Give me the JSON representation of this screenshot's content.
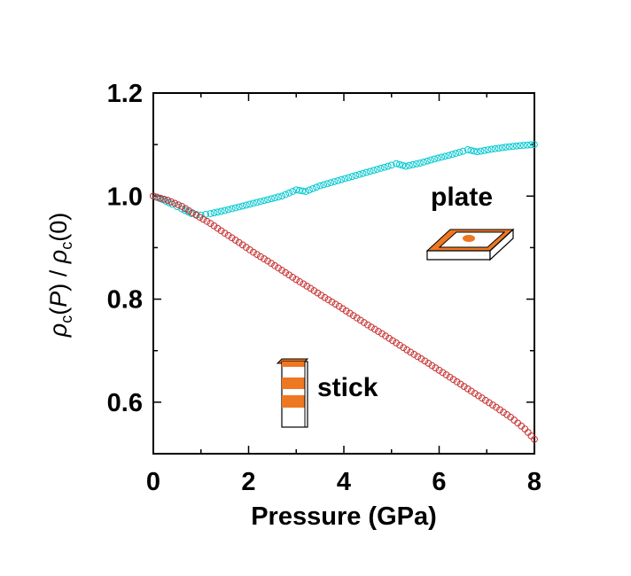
{
  "chart_data": {
    "type": "scatter",
    "xlabel": "Pressure (GPa)",
    "ylabel": {
      "rho1": "ρ",
      "sub1": "c",
      "mid": "(",
      "p": "P",
      "slash": ") / ",
      "rho2": "ρ",
      "sub2": "c",
      "end": "(0)"
    },
    "xlim": [
      0,
      8
    ],
    "ylim": [
      0.5,
      1.2
    ],
    "xticks": [
      "0",
      "2",
      "4",
      "6",
      "8"
    ],
    "yticks": [
      "0.6",
      "0.8",
      "1.0",
      "1.2"
    ],
    "grid": false,
    "legend": "none",
    "annotations": [
      "plate",
      "stick"
    ],
    "series": [
      {
        "color": "#00c8d0",
        "marker": "open-circle",
        "points": [
          [
            0,
            1.0
          ],
          [
            0.2,
            0.993
          ],
          [
            0.4,
            0.984
          ],
          [
            0.6,
            0.975
          ],
          [
            0.8,
            0.966
          ],
          [
            1.0,
            0.963
          ],
          [
            1.2,
            0.966
          ],
          [
            1.5,
            0.972
          ],
          [
            1.8,
            0.979
          ],
          [
            2.1,
            0.986
          ],
          [
            2.4,
            0.993
          ],
          [
            2.7,
            1.0
          ],
          [
            3.0,
            1.012
          ],
          [
            3.2,
            1.009
          ],
          [
            3.5,
            1.02
          ],
          [
            3.8,
            1.028
          ],
          [
            4.1,
            1.036
          ],
          [
            4.4,
            1.044
          ],
          [
            4.7,
            1.052
          ],
          [
            5.0,
            1.06
          ],
          [
            5.1,
            1.063
          ],
          [
            5.3,
            1.058
          ],
          [
            5.6,
            1.064
          ],
          [
            5.9,
            1.072
          ],
          [
            6.2,
            1.079
          ],
          [
            6.5,
            1.087
          ],
          [
            6.6,
            1.09
          ],
          [
            6.8,
            1.086
          ],
          [
            7.1,
            1.091
          ],
          [
            7.4,
            1.095
          ],
          [
            7.7,
            1.098
          ],
          [
            8.0,
            1.1
          ]
        ]
      },
      {
        "color": "#c83232",
        "marker": "open-circle",
        "points": [
          [
            0,
            1.0
          ],
          [
            0.3,
            0.992
          ],
          [
            0.6,
            0.98
          ],
          [
            0.9,
            0.963
          ],
          [
            1.2,
            0.947
          ],
          [
            1.5,
            0.928
          ],
          [
            1.8,
            0.91
          ],
          [
            2.1,
            0.891
          ],
          [
            2.4,
            0.874
          ],
          [
            2.7,
            0.856
          ],
          [
            3.0,
            0.838
          ],
          [
            3.3,
            0.821
          ],
          [
            3.6,
            0.803
          ],
          [
            3.9,
            0.786
          ],
          [
            4.2,
            0.768
          ],
          [
            4.5,
            0.75
          ],
          [
            4.8,
            0.733
          ],
          [
            5.1,
            0.715
          ],
          [
            5.4,
            0.697
          ],
          [
            5.7,
            0.68
          ],
          [
            6.0,
            0.662
          ],
          [
            6.3,
            0.644
          ],
          [
            6.6,
            0.626
          ],
          [
            6.9,
            0.608
          ],
          [
            7.2,
            0.59
          ],
          [
            7.5,
            0.571
          ],
          [
            7.8,
            0.548
          ],
          [
            8.0,
            0.528
          ]
        ]
      }
    ]
  }
}
